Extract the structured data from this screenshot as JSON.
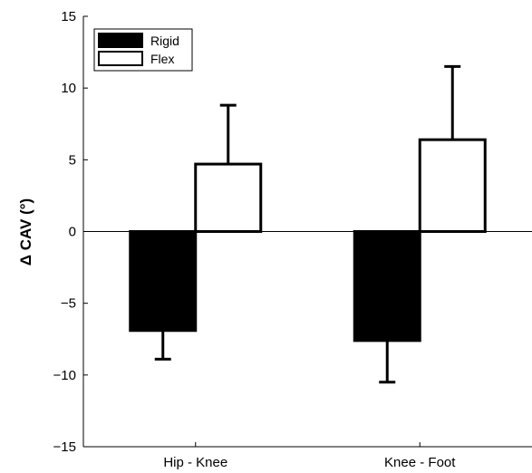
{
  "chart_data": {
    "type": "bar",
    "categories": [
      "Hip - Knee",
      "Knee - Foot"
    ],
    "series": [
      {
        "name": "Rigid",
        "values": [
          -6.9,
          -7.6
        ],
        "errors": [
          2.0,
          2.9
        ],
        "color": "#000000"
      },
      {
        "name": "Flex",
        "values": [
          4.7,
          6.4
        ],
        "errors": [
          4.1,
          5.1
        ],
        "color": "#ffffff"
      }
    ],
    "ylabel": "Δ CAV (°)",
    "xlabel": "",
    "title": "",
    "ylim": [
      -15,
      15
    ],
    "yticks": [
      15,
      10,
      5,
      0,
      -5,
      -10,
      -15
    ],
    "ytick_labels": [
      "15",
      "10",
      "5",
      "0",
      "−5",
      "−10",
      "−15"
    ],
    "legend_position": "top-left",
    "grid": false,
    "zero_line": true
  }
}
